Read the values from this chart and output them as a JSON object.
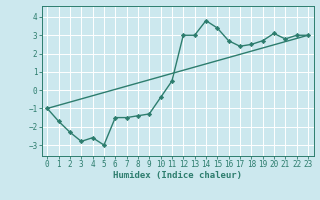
{
  "title": "",
  "xlabel": "Humidex (Indice chaleur)",
  "ylabel": "",
  "bg_color": "#cce8ee",
  "line_color": "#2d7d6e",
  "grid_color": "#ffffff",
  "xlim": [
    -0.5,
    23.5
  ],
  "ylim": [
    -3.6,
    4.6
  ],
  "xticks": [
    0,
    1,
    2,
    3,
    4,
    5,
    6,
    7,
    8,
    9,
    10,
    11,
    12,
    13,
    14,
    15,
    16,
    17,
    18,
    19,
    20,
    21,
    22,
    23
  ],
  "yticks": [
    -3,
    -2,
    -1,
    0,
    1,
    2,
    3,
    4
  ],
  "curve1_x": [
    0,
    1,
    2,
    3,
    4,
    5,
    6,
    7,
    8,
    9,
    10,
    11,
    12,
    13,
    14,
    15,
    16,
    17,
    18,
    19,
    20,
    21,
    22,
    23
  ],
  "curve1_y": [
    -1.0,
    -1.7,
    -2.3,
    -2.8,
    -2.6,
    -3.0,
    -1.5,
    -1.5,
    -1.4,
    -1.3,
    -0.4,
    0.5,
    3.0,
    3.0,
    3.8,
    3.4,
    2.7,
    2.4,
    2.5,
    2.7,
    3.1,
    2.8,
    3.0,
    3.0
  ],
  "curve2_x": [
    0,
    23
  ],
  "curve2_y": [
    -1.0,
    3.0
  ],
  "marker": "D",
  "markersize": 2.2,
  "linewidth": 1.0,
  "tick_fontsize": 5.5,
  "xlabel_fontsize": 6.5
}
